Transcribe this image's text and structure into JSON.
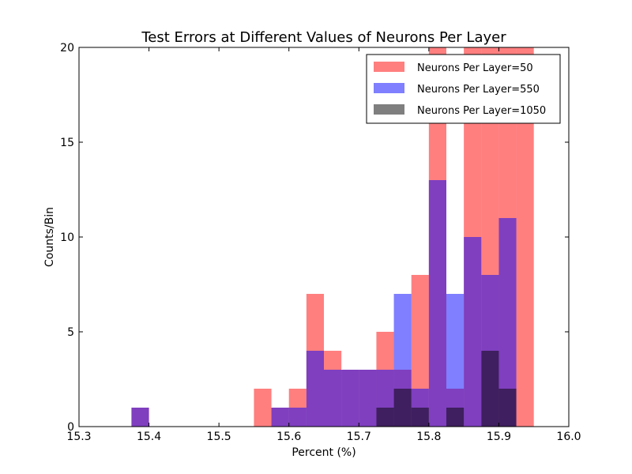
{
  "chart_data": {
    "type": "bar",
    "title": "Test Errors at Different Values of Neurons Per Layer",
    "xlabel": "Percent (%)",
    "ylabel": "Counts/Bin",
    "xlim": [
      15.3,
      16.0
    ],
    "ylim": [
      0,
      20
    ],
    "xticks": [
      "15.3",
      "15.4",
      "15.5",
      "15.6",
      "15.7",
      "15.8",
      "15.9",
      "16.0"
    ],
    "yticks": [
      "0",
      "5",
      "10",
      "15",
      "20"
    ],
    "legend_position": "top-right",
    "grid": false,
    "bin_width": 0.025,
    "bin_starts": [
      15.375,
      15.4,
      15.425,
      15.45,
      15.475,
      15.5,
      15.525,
      15.55,
      15.575,
      15.6,
      15.625,
      15.65,
      15.675,
      15.7,
      15.725,
      15.75,
      15.775,
      15.8,
      15.825,
      15.85,
      15.875,
      15.9,
      15.925
    ],
    "series": [
      {
        "name": "Neurons Per Layer=50",
        "color": "#ff0000",
        "opacity": 0.5,
        "values": [
          1,
          0,
          0,
          0,
          0,
          0,
          0,
          2,
          1,
          2,
          7,
          4,
          3,
          3,
          5,
          3,
          8,
          20,
          2,
          20,
          20,
          20,
          20
        ]
      },
      {
        "name": "Neurons Per Layer=550",
        "color": "#0000ff",
        "opacity": 0.5,
        "values": [
          1,
          0,
          0,
          0,
          0,
          0,
          0,
          0,
          1,
          1,
          4,
          3,
          3,
          3,
          3,
          7,
          2,
          13,
          7,
          10,
          8,
          11,
          0
        ]
      },
      {
        "name": "Neurons Per Layer=1050",
        "color": "#000000",
        "opacity": 0.5,
        "values": [
          0,
          0,
          0,
          0,
          0,
          0,
          0,
          0,
          0,
          0,
          0,
          0,
          0,
          0,
          1,
          2,
          1,
          0,
          1,
          0,
          4,
          2,
          0
        ]
      }
    ]
  }
}
